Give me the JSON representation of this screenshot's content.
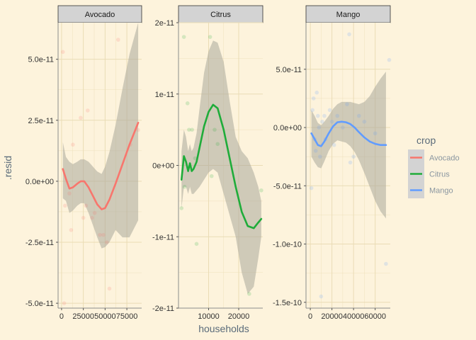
{
  "chart_data": {
    "type": "scatter",
    "xlabel": "households",
    "ylabel": ".resid",
    "legend": {
      "title": "crop",
      "position": "right"
    },
    "grid": true,
    "panels": [
      {
        "name": "Avocado",
        "color": "#f8766d",
        "xlim": [
          -4000,
          92000
        ],
        "ylim": [
          -5.2e-11,
          6.5e-11
        ],
        "xticks": [
          0,
          25000,
          50000,
          75000
        ],
        "xtick_labels": [
          "0",
          "25000",
          "50000",
          "75000"
        ],
        "yticks": [
          5e-11,
          2.5e-11,
          0,
          -2.5e-11,
          -5e-11
        ],
        "ytick_labels": [
          "5.0e-11",
          "2.5e-11",
          "0.0e+00",
          "-2.5e-11",
          "-5.0e-11"
        ],
        "points": [
          [
            1500,
            5.3e-11
          ],
          [
            3000,
            -5e-11
          ],
          [
            4000,
            -1e-11
          ],
          [
            9000,
            -5e-12
          ],
          [
            11000,
            -2e-11
          ],
          [
            13000,
            1.5e-11
          ],
          [
            22000,
            2.6e-11
          ],
          [
            25000,
            -1.5e-11
          ],
          [
            28000,
            -1e-11
          ],
          [
            30000,
            2.9e-11
          ],
          [
            35000,
            -1.5e-11
          ],
          [
            38000,
            -1.3e-11
          ],
          [
            44000,
            -2.2e-11
          ],
          [
            48000,
            -2.2e-11
          ],
          [
            52000,
            -2.5e-11
          ],
          [
            55000,
            -4.4e-11
          ],
          [
            65000,
            5.8e-11
          ],
          [
            79000,
            1.5e-11
          ],
          [
            88000,
            2.1e-11
          ]
        ],
        "fit": [
          [
            1500,
            5e-12
          ],
          [
            5000,
            1e-12
          ],
          [
            9000,
            -3e-12
          ],
          [
            13000,
            -2.5e-12
          ],
          [
            18000,
            -1e-12
          ],
          [
            22000,
            0
          ],
          [
            26000,
            0
          ],
          [
            31000,
            -2.5e-12
          ],
          [
            36000,
            -6e-12
          ],
          [
            41000,
            -9.5e-12
          ],
          [
            46000,
            -1.15e-11
          ],
          [
            50000,
            -1.1e-11
          ],
          [
            55000,
            -7.5e-12
          ],
          [
            62000,
            -1e-12
          ],
          [
            70000,
            7e-12
          ],
          [
            78000,
            1.5e-11
          ],
          [
            88000,
            2.4e-11
          ]
        ],
        "band_upper": [
          [
            1500,
            1.6e-11
          ],
          [
            5000,
            1e-11
          ],
          [
            9000,
            8e-12
          ],
          [
            13000,
            7e-12
          ],
          [
            18000,
            8e-12
          ],
          [
            22000,
            9e-12
          ],
          [
            26000,
            9e-12
          ],
          [
            31000,
            8e-12
          ],
          [
            36000,
            6e-12
          ],
          [
            41000,
            4e-12
          ],
          [
            46000,
            3e-12
          ],
          [
            50000,
            6e-12
          ],
          [
            55000,
            1.2e-11
          ],
          [
            62000,
            2.3e-11
          ],
          [
            70000,
            3.8e-11
          ],
          [
            78000,
            5.2e-11
          ],
          [
            88000,
            6.5e-11
          ]
        ],
        "band_lower": [
          [
            1500,
            -7e-12
          ],
          [
            5000,
            -8e-12
          ],
          [
            9000,
            -1.3e-11
          ],
          [
            13000,
            -1.2e-11
          ],
          [
            18000,
            -1e-11
          ],
          [
            22000,
            -9e-12
          ],
          [
            26000,
            -9e-12
          ],
          [
            31000,
            -1.3e-11
          ],
          [
            36000,
            -1.8e-11
          ],
          [
            41000,
            -2.3e-11
          ],
          [
            46000,
            -2.75e-11
          ],
          [
            50000,
            -2.7e-11
          ],
          [
            55000,
            -2.5e-11
          ],
          [
            62000,
            -2e-11
          ],
          [
            70000,
            -2.3e-11
          ],
          [
            78000,
            -2.3e-11
          ],
          [
            88000,
            -1.6e-11
          ]
        ]
      },
      {
        "name": "Citrus",
        "color": "#1fac3a",
        "xlim": [
          0,
          28000
        ],
        "ylim": [
          -2e-11,
          2e-11
        ],
        "xticks": [
          10000,
          20000
        ],
        "xtick_labels": [
          "10000",
          "20000"
        ],
        "yticks": [
          2e-11,
          1e-11,
          0,
          -1e-11,
          -2e-11
        ],
        "ytick_labels": [
          "2e-11",
          "1e-11",
          "0e+00",
          "-1e-11",
          "-2e-11"
        ],
        "points": [
          [
            1000,
            -6e-12
          ],
          [
            1800,
            1.8e-11
          ],
          [
            2000,
            -3e-12
          ],
          [
            3000,
            8.7e-12
          ],
          [
            3500,
            5e-12
          ],
          [
            4500,
            5e-12
          ],
          [
            5500,
            1e-12
          ],
          [
            6000,
            -1.1e-11
          ],
          [
            10500,
            1.8e-11
          ],
          [
            11000,
            -1.5e-12
          ],
          [
            12000,
            5e-12
          ],
          [
            13000,
            3e-12
          ],
          [
            23500,
            -1.8e-11
          ],
          [
            27500,
            -3.5e-12
          ]
        ],
        "fit": [
          [
            1000,
            -2e-12
          ],
          [
            1800,
            1.3e-12
          ],
          [
            2500,
            5e-13
          ],
          [
            3200,
            -8e-13
          ],
          [
            3800,
            3e-13
          ],
          [
            4400,
            -8e-13
          ],
          [
            5000,
            -5e-13
          ],
          [
            6000,
            5e-13
          ],
          [
            7000,
            2.5e-12
          ],
          [
            8500,
            5.5e-12
          ],
          [
            10000,
            7.5e-12
          ],
          [
            11500,
            8.5e-12
          ],
          [
            13000,
            8e-12
          ],
          [
            15000,
            5e-12
          ],
          [
            17000,
            1e-12
          ],
          [
            19000,
            -3e-12
          ],
          [
            21000,
            -6.5e-12
          ],
          [
            23000,
            -8.5e-12
          ],
          [
            25000,
            -8.8e-12
          ],
          [
            26500,
            -8e-12
          ],
          [
            27500,
            -7.5e-12
          ]
        ],
        "band_upper": [
          [
            1000,
            2e-12
          ],
          [
            1800,
            5e-12
          ],
          [
            2500,
            4e-12
          ],
          [
            3200,
            2e-12
          ],
          [
            3800,
            3e-12
          ],
          [
            4400,
            2e-12
          ],
          [
            5000,
            2.5e-12
          ],
          [
            6000,
            4.5e-12
          ],
          [
            7000,
            8e-12
          ],
          [
            8500,
            1.3e-11
          ],
          [
            10000,
            1.6e-11
          ],
          [
            11500,
            1.75e-11
          ],
          [
            13000,
            1.72e-11
          ],
          [
            15000,
            1.45e-11
          ],
          [
            17000,
            9e-12
          ],
          [
            19000,
            4e-12
          ],
          [
            21000,
            2e-12
          ],
          [
            23000,
            1e-12
          ],
          [
            25000,
            -1e-12
          ],
          [
            26500,
            -3e-12
          ],
          [
            27500,
            -5e-12
          ]
        ],
        "band_lower": [
          [
            1000,
            -6e-12
          ],
          [
            1800,
            -3e-12
          ],
          [
            2500,
            -3e-12
          ],
          [
            3200,
            -4e-12
          ],
          [
            3800,
            -3e-12
          ],
          [
            4400,
            -4e-12
          ],
          [
            5000,
            -4e-12
          ],
          [
            6000,
            -3.5e-12
          ],
          [
            7000,
            -3e-12
          ],
          [
            8500,
            -2e-12
          ],
          [
            10000,
            -1e-12
          ],
          [
            11500,
            -5e-13
          ],
          [
            13000,
            -1e-12
          ],
          [
            15000,
            -4e-12
          ],
          [
            17000,
            -7e-12
          ],
          [
            19000,
            -1e-11
          ],
          [
            21000,
            -1.5e-11
          ],
          [
            23000,
            -1.8e-11
          ],
          [
            25000,
            -1.7e-11
          ],
          [
            26500,
            -1.3e-11
          ],
          [
            27500,
            -1e-11
          ]
        ]
      },
      {
        "name": "Mango",
        "color": "#619cff",
        "xlim": [
          -4000,
          74000
        ],
        "ylim": [
          -1.55e-10,
          9e-11
        ],
        "xticks": [
          0,
          20000,
          40000,
          60000
        ],
        "xtick_labels": [
          "0",
          "20000",
          "40000",
          "60000"
        ],
        "yticks": [
          5e-11,
          0,
          -5e-11,
          -1e-10,
          -1.5e-10
        ],
        "ytick_labels": [
          "5.0e-11",
          "0.0e+00",
          "-5.0e-11",
          "-1.0e-10",
          "-1.5e-10"
        ],
        "points": [
          [
            1000,
            -5.2e-11
          ],
          [
            2000,
            1.5e-11
          ],
          [
            3000,
            2.5e-11
          ],
          [
            4000,
            -1e-11
          ],
          [
            5000,
            -2e-11
          ],
          [
            6000,
            3e-11
          ],
          [
            7000,
            1e-11
          ],
          [
            8000,
            0
          ],
          [
            9000,
            -2.5e-11
          ],
          [
            10000,
            -1.45e-10
          ],
          [
            11000,
            5e-12
          ],
          [
            13000,
            1e-11
          ],
          [
            14000,
            -1e-11
          ],
          [
            18000,
            1.5e-11
          ],
          [
            20000,
            5e-12
          ],
          [
            22000,
            -1.5e-11
          ],
          [
            25000,
            1e-11
          ],
          [
            30000,
            0
          ],
          [
            34000,
            2e-11
          ],
          [
            36000,
            8e-11
          ],
          [
            37000,
            -3e-11
          ],
          [
            40000,
            -2.5e-11
          ],
          [
            45000,
            1e-11
          ],
          [
            50000,
            5e-12
          ],
          [
            60000,
            -5e-12
          ],
          [
            70000,
            -1.17e-10
          ],
          [
            73000,
            5.8e-11
          ]
        ],
        "fit": [
          [
            1000,
            -5e-12
          ],
          [
            4000,
            -1e-11
          ],
          [
            7000,
            -1.5e-11
          ],
          [
            10000,
            -1.6e-11
          ],
          [
            13000,
            -1.2e-11
          ],
          [
            17000,
            -5e-12
          ],
          [
            21000,
            1e-12
          ],
          [
            25000,
            4.5e-12
          ],
          [
            29000,
            5e-12
          ],
          [
            33000,
            4.5e-12
          ],
          [
            37000,
            3e-12
          ],
          [
            41000,
            0
          ],
          [
            45000,
            -4e-12
          ],
          [
            50000,
            -8.5e-12
          ],
          [
            55000,
            -1.2e-11
          ],
          [
            60000,
            -1.4e-11
          ],
          [
            65000,
            -1.5e-11
          ],
          [
            70000,
            -1.5e-11
          ]
        ],
        "band_upper": [
          [
            1000,
            1.5e-11
          ],
          [
            4000,
            1e-11
          ],
          [
            7000,
            4e-12
          ],
          [
            10000,
            2e-12
          ],
          [
            13000,
            5e-12
          ],
          [
            17000,
            1e-11
          ],
          [
            21000,
            1.6e-11
          ],
          [
            25000,
            2e-11
          ],
          [
            29000,
            2.2e-11
          ],
          [
            33000,
            2.2e-11
          ],
          [
            37000,
            2.2e-11
          ],
          [
            41000,
            2.1e-11
          ],
          [
            45000,
            2e-11
          ],
          [
            50000,
            2.2e-11
          ],
          [
            55000,
            2.7e-11
          ],
          [
            60000,
            3.5e-11
          ],
          [
            65000,
            4.2e-11
          ],
          [
            70000,
            4.8e-11
          ]
        ],
        "band_lower": [
          [
            1000,
            -2.5e-11
          ],
          [
            4000,
            -3e-11
          ],
          [
            7000,
            -3.4e-11
          ],
          [
            10000,
            -3.5e-11
          ],
          [
            13000,
            -2.9e-11
          ],
          [
            17000,
            -2e-11
          ],
          [
            21000,
            -1.4e-11
          ],
          [
            25000,
            -1.1e-11
          ],
          [
            29000,
            -1.2e-11
          ],
          [
            33000,
            -1.3e-11
          ],
          [
            37000,
            -1.6e-11
          ],
          [
            41000,
            -2.1e-11
          ],
          [
            45000,
            -2.8e-11
          ],
          [
            50000,
            -3.9e-11
          ],
          [
            55000,
            -5.1e-11
          ],
          [
            60000,
            -6.3e-11
          ],
          [
            65000,
            -7.2e-11
          ],
          [
            70000,
            -7.8e-11
          ]
        ]
      }
    ],
    "series": [
      {
        "name": "Avocado",
        "color": "#f8766d"
      },
      {
        "name": "Citrus",
        "color": "#1fac3a"
      },
      {
        "name": "Mango",
        "color": "#619cff"
      }
    ]
  }
}
